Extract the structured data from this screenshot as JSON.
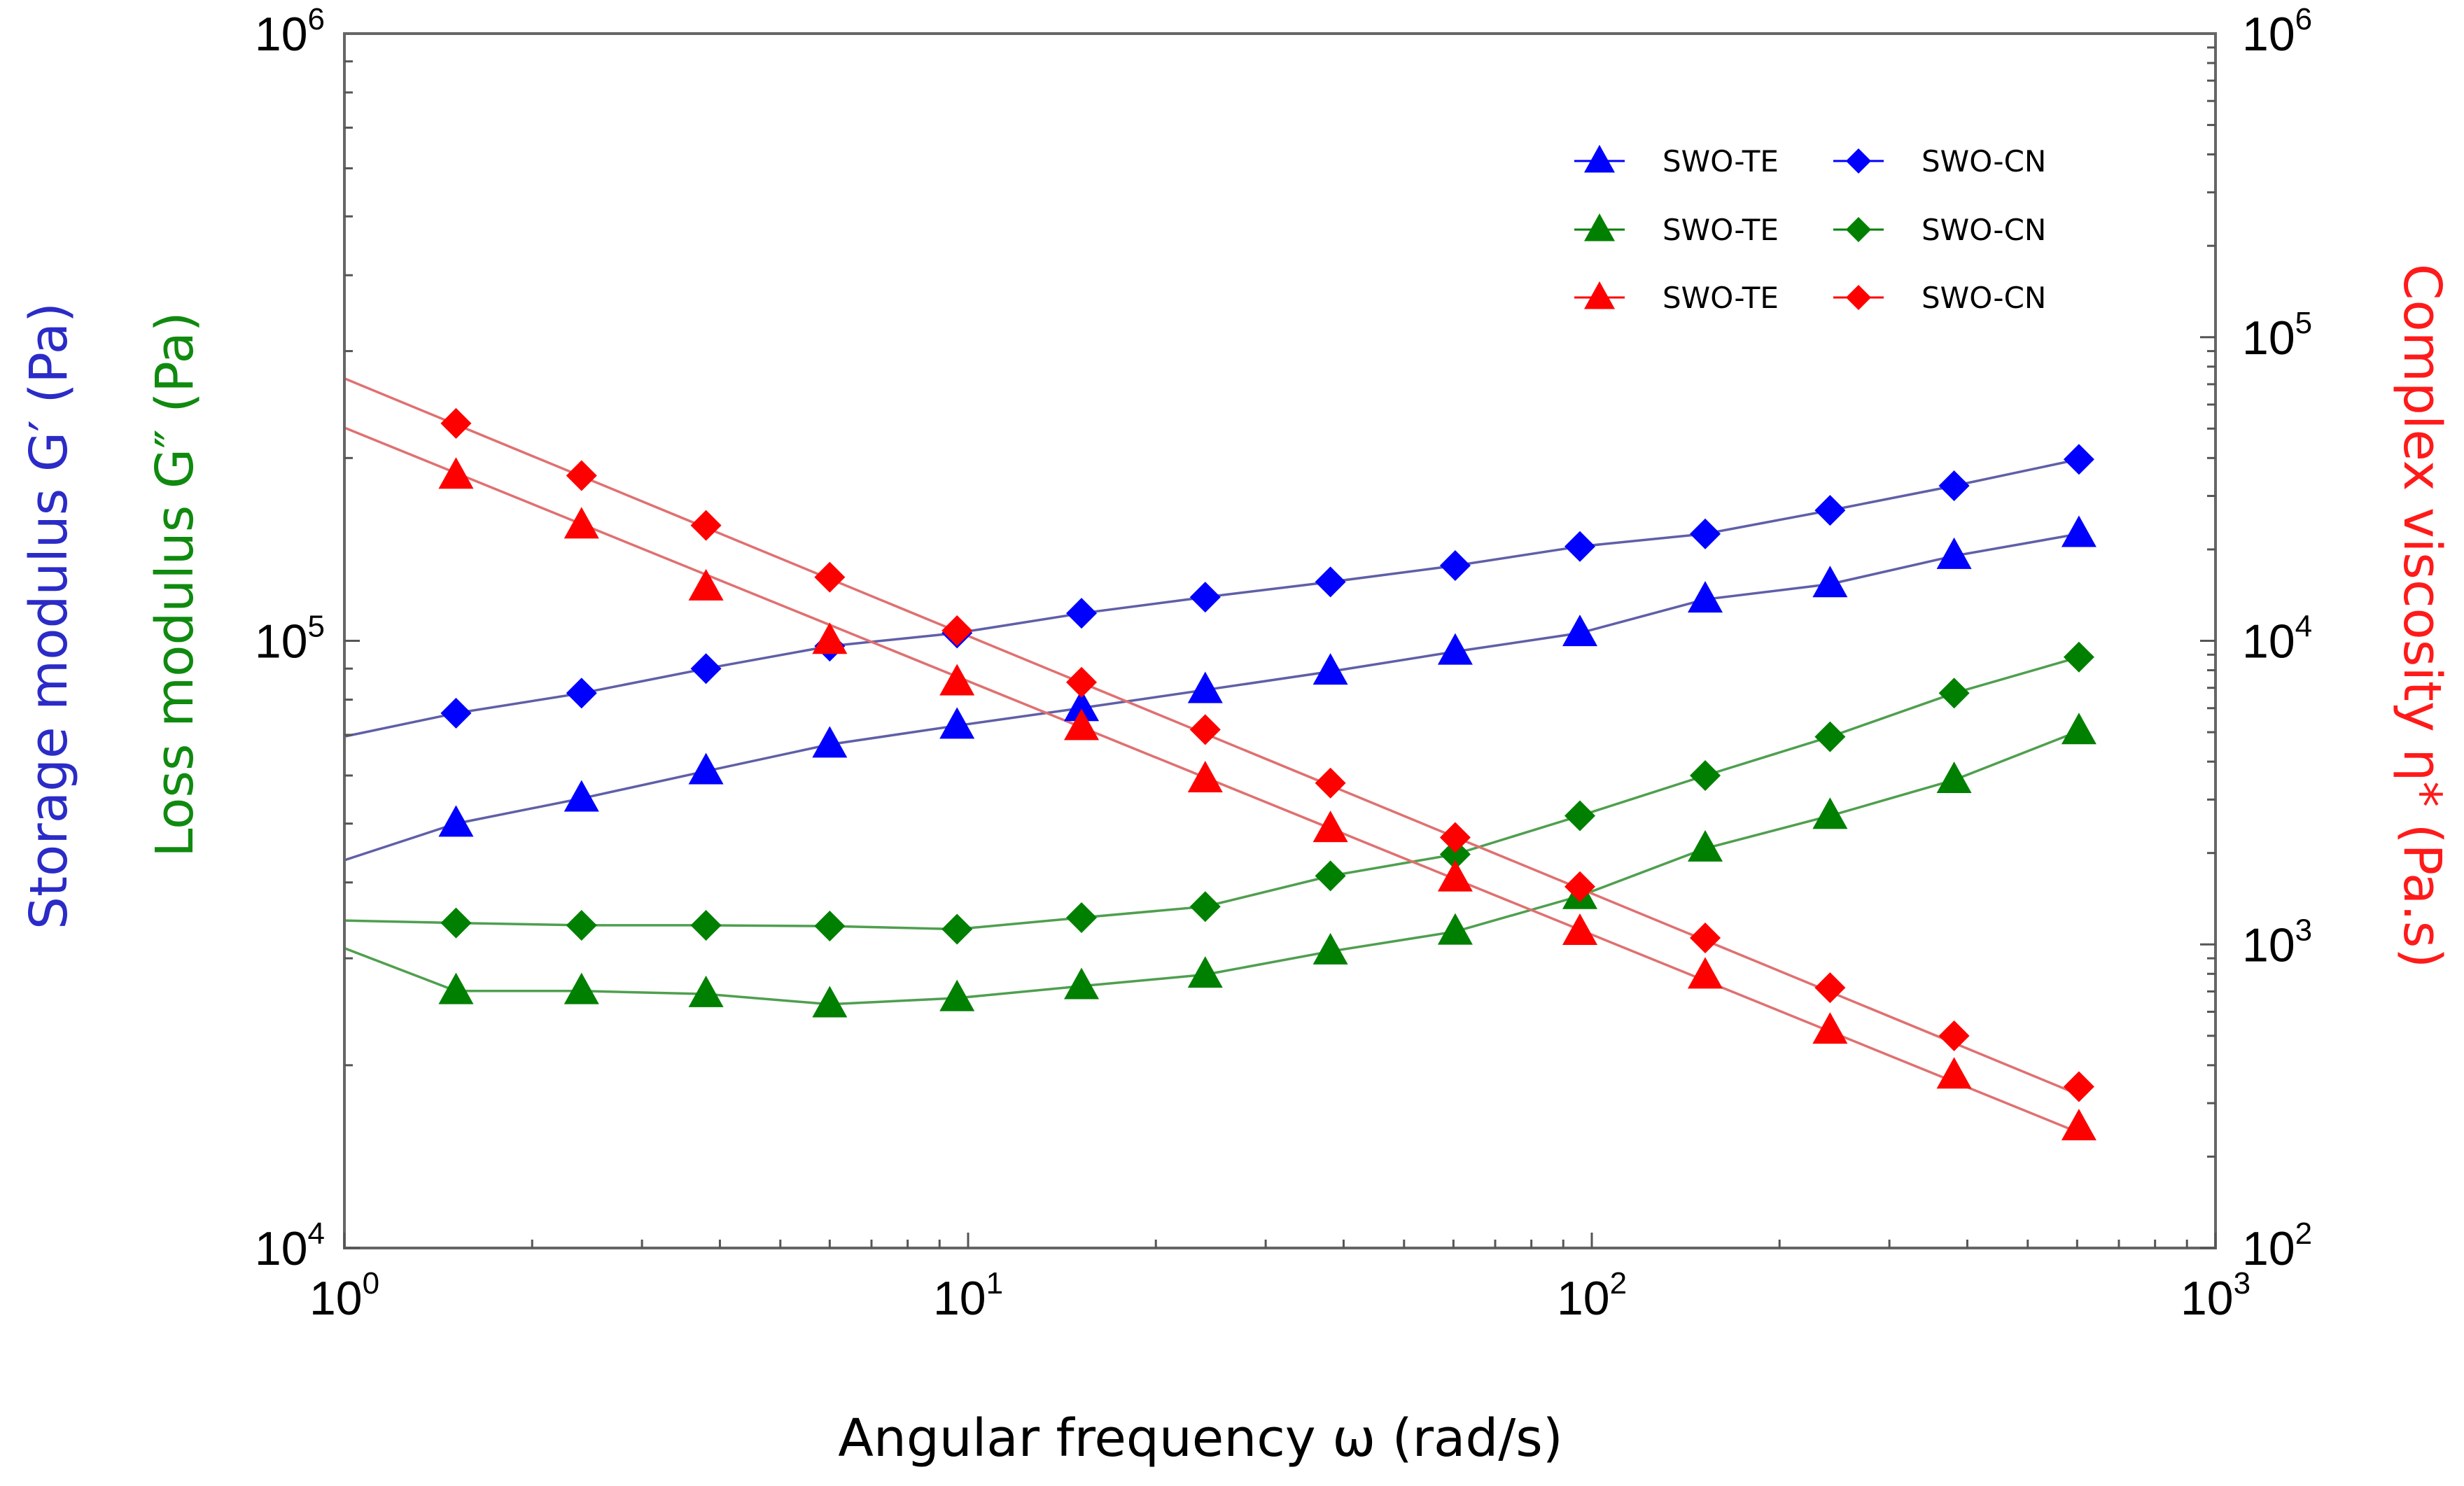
{
  "chart_data": {
    "type": "scatter",
    "x_scale": "log",
    "xlabel": "Angular frequency ω (rad/s)",
    "xlim": [
      1,
      1000
    ],
    "x_ticks": [
      {
        "base": "10",
        "exp": "0",
        "value": 1
      },
      {
        "base": "10",
        "exp": "1",
        "value": 10
      },
      {
        "base": "10",
        "exp": "2",
        "value": 100
      },
      {
        "base": "10",
        "exp": "3",
        "value": 1000
      }
    ],
    "y_left": {
      "scale": "log",
      "ylim": [
        10000,
        1000000
      ],
      "label_storage": "Storage modulus G′ (Pa)",
      "label_loss": "Loss modulus G″ (Pa)",
      "color_storage": "#2b2bc8",
      "color_loss": "#0f8a0f",
      "ticks": [
        {
          "base": "10",
          "exp": "4",
          "value": 10000
        },
        {
          "base": "10",
          "exp": "5",
          "value": 100000
        },
        {
          "base": "10",
          "exp": "6",
          "value": 1000000
        }
      ]
    },
    "y_right": {
      "scale": "log",
      "ylim": [
        100,
        1000000
      ],
      "label": "Complex viscosity  η*  (Pa.s)",
      "color": "#ff1a1a",
      "ticks": [
        {
          "base": "10",
          "exp": "2",
          "value": 100
        },
        {
          "base": "10",
          "exp": "3",
          "value": 1000
        },
        {
          "base": "10",
          "exp": "4",
          "value": 10000
        },
        {
          "base": "10",
          "exp": "5",
          "value": 100000
        },
        {
          "base": "10",
          "exp": "6",
          "value": 1000000
        }
      ]
    },
    "x": [
      1.51,
      2.4,
      3.8,
      6.0,
      9.6,
      15.2,
      24.0,
      38.1,
      60.4,
      95.7,
      152,
      241,
      381,
      604
    ],
    "series": [
      {
        "name": "SWO-TE",
        "quantity": "storage modulus G'",
        "axis": "left",
        "marker": "triangle",
        "color": "#0000ff",
        "line_color": "#5f5fa8",
        "values": [
          50000,
          55000,
          61000,
          67500,
          72500,
          77500,
          83000,
          89000,
          96000,
          103000,
          117000,
          124000,
          138000,
          150000
        ]
      },
      {
        "name": "SWO-CN",
        "quantity": "storage modulus G'",
        "axis": "left",
        "marker": "diamond",
        "color": "#0000ff",
        "line_color": "#5f5fa8",
        "values": [
          76000,
          82000,
          90000,
          98000,
          103000,
          111000,
          118000,
          125000,
          133000,
          143000,
          150000,
          164000,
          180000,
          199000
        ]
      },
      {
        "name": "SWO-TE",
        "quantity": "loss modulus G''",
        "axis": "left",
        "marker": "triangle",
        "color": "#008000",
        "line_color": "#4f9f4f",
        "values": [
          26500,
          26500,
          26200,
          25200,
          25800,
          27000,
          28200,
          30800,
          33200,
          38000,
          45500,
          51500,
          59000,
          71000
        ]
      },
      {
        "name": "SWO-CN",
        "quantity": "loss modulus G''",
        "axis": "left",
        "marker": "diamond",
        "color": "#008000",
        "line_color": "#4f9f4f",
        "values": [
          34300,
          34000,
          34000,
          33900,
          33500,
          35000,
          36500,
          41000,
          44500,
          51500,
          60000,
          69500,
          82000,
          94000
        ]
      },
      {
        "name": "SWO-TE",
        "quantity": "complex viscosity η*",
        "axis": "right",
        "marker": "triangle",
        "color": "#ff0000",
        "line_color": "#e07070",
        "values": [
          35000,
          24000,
          15000,
          10000,
          7300,
          5200,
          3500,
          2400,
          1650,
          1100,
          790,
          520,
          370,
          250
        ]
      },
      {
        "name": "SWO-CN",
        "quantity": "complex viscosity η*",
        "axis": "right",
        "marker": "diamond",
        "color": "#ff0000",
        "line_color": "#e07070",
        "values": [
          52000,
          35000,
          24000,
          16200,
          10800,
          7300,
          5100,
          3400,
          2250,
          1550,
          1050,
          720,
          500,
          340
        ]
      }
    ],
    "fit_lines": [
      {
        "series_index": 0,
        "x": [
          0.9,
          1.51,
          2.4,
          3.8,
          6.0,
          9.6,
          15.2,
          24.0,
          38.1,
          60.4,
          95.7,
          152,
          241,
          381,
          604
        ],
        "values": [
          42000,
          50000,
          55000,
          61000,
          67500,
          72500,
          77500,
          83000,
          89000,
          96000,
          103000,
          117000,
          124000,
          138000,
          150000
        ]
      },
      {
        "series_index": 1,
        "x": [
          0.9,
          1.51,
          2.4,
          3.8,
          6.0,
          9.6,
          15.2,
          24.0,
          38.1,
          60.4,
          95.7,
          152,
          241,
          381,
          604
        ],
        "values": [
          68000,
          76000,
          82000,
          90000,
          98000,
          103000,
          111000,
          118000,
          125000,
          133000,
          143000,
          150000,
          164000,
          180000,
          199000
        ]
      },
      {
        "series_index": 2,
        "x": [
          0.9,
          1.51,
          2.4,
          3.8,
          6.0,
          9.6,
          15.2,
          24.0,
          38.1,
          60.4,
          95.7,
          152,
          241,
          381,
          604
        ],
        "values": [
          32500,
          26500,
          26500,
          26200,
          25200,
          25800,
          27000,
          28200,
          30800,
          33200,
          38000,
          45500,
          51500,
          59000,
          71000
        ]
      },
      {
        "series_index": 3,
        "x": [
          0.9,
          1.51,
          2.4,
          3.8,
          6.0,
          9.6,
          15.2,
          24.0,
          38.1,
          60.4,
          95.7,
          152,
          241,
          381,
          604
        ],
        "values": [
          34700,
          34300,
          34000,
          34000,
          33900,
          33500,
          35000,
          36500,
          41000,
          44500,
          51500,
          60000,
          69500,
          82000,
          94000
        ]
      },
      {
        "series_index": 4,
        "x": [
          0.9,
          604
        ],
        "values": [
          55000,
          240
        ]
      },
      {
        "series_index": 5,
        "x": [
          0.9,
          604
        ],
        "values": [
          80000,
          320
        ]
      }
    ],
    "legend": {
      "placement": "top-right",
      "entries": [
        {
          "label": "SWO-TE",
          "marker": "triangle",
          "color": "#0000ff"
        },
        {
          "label": "SWO-CN",
          "marker": "diamond",
          "color": "#0000ff"
        },
        {
          "label": "SWO-TE",
          "marker": "triangle",
          "color": "#008000"
        },
        {
          "label": "SWO-CN",
          "marker": "diamond",
          "color": "#008000"
        },
        {
          "label": "SWO-TE",
          "marker": "triangle",
          "color": "#ff0000"
        },
        {
          "label": "SWO-CN",
          "marker": "diamond",
          "color": "#ff0000"
        }
      ]
    },
    "grid": false
  }
}
